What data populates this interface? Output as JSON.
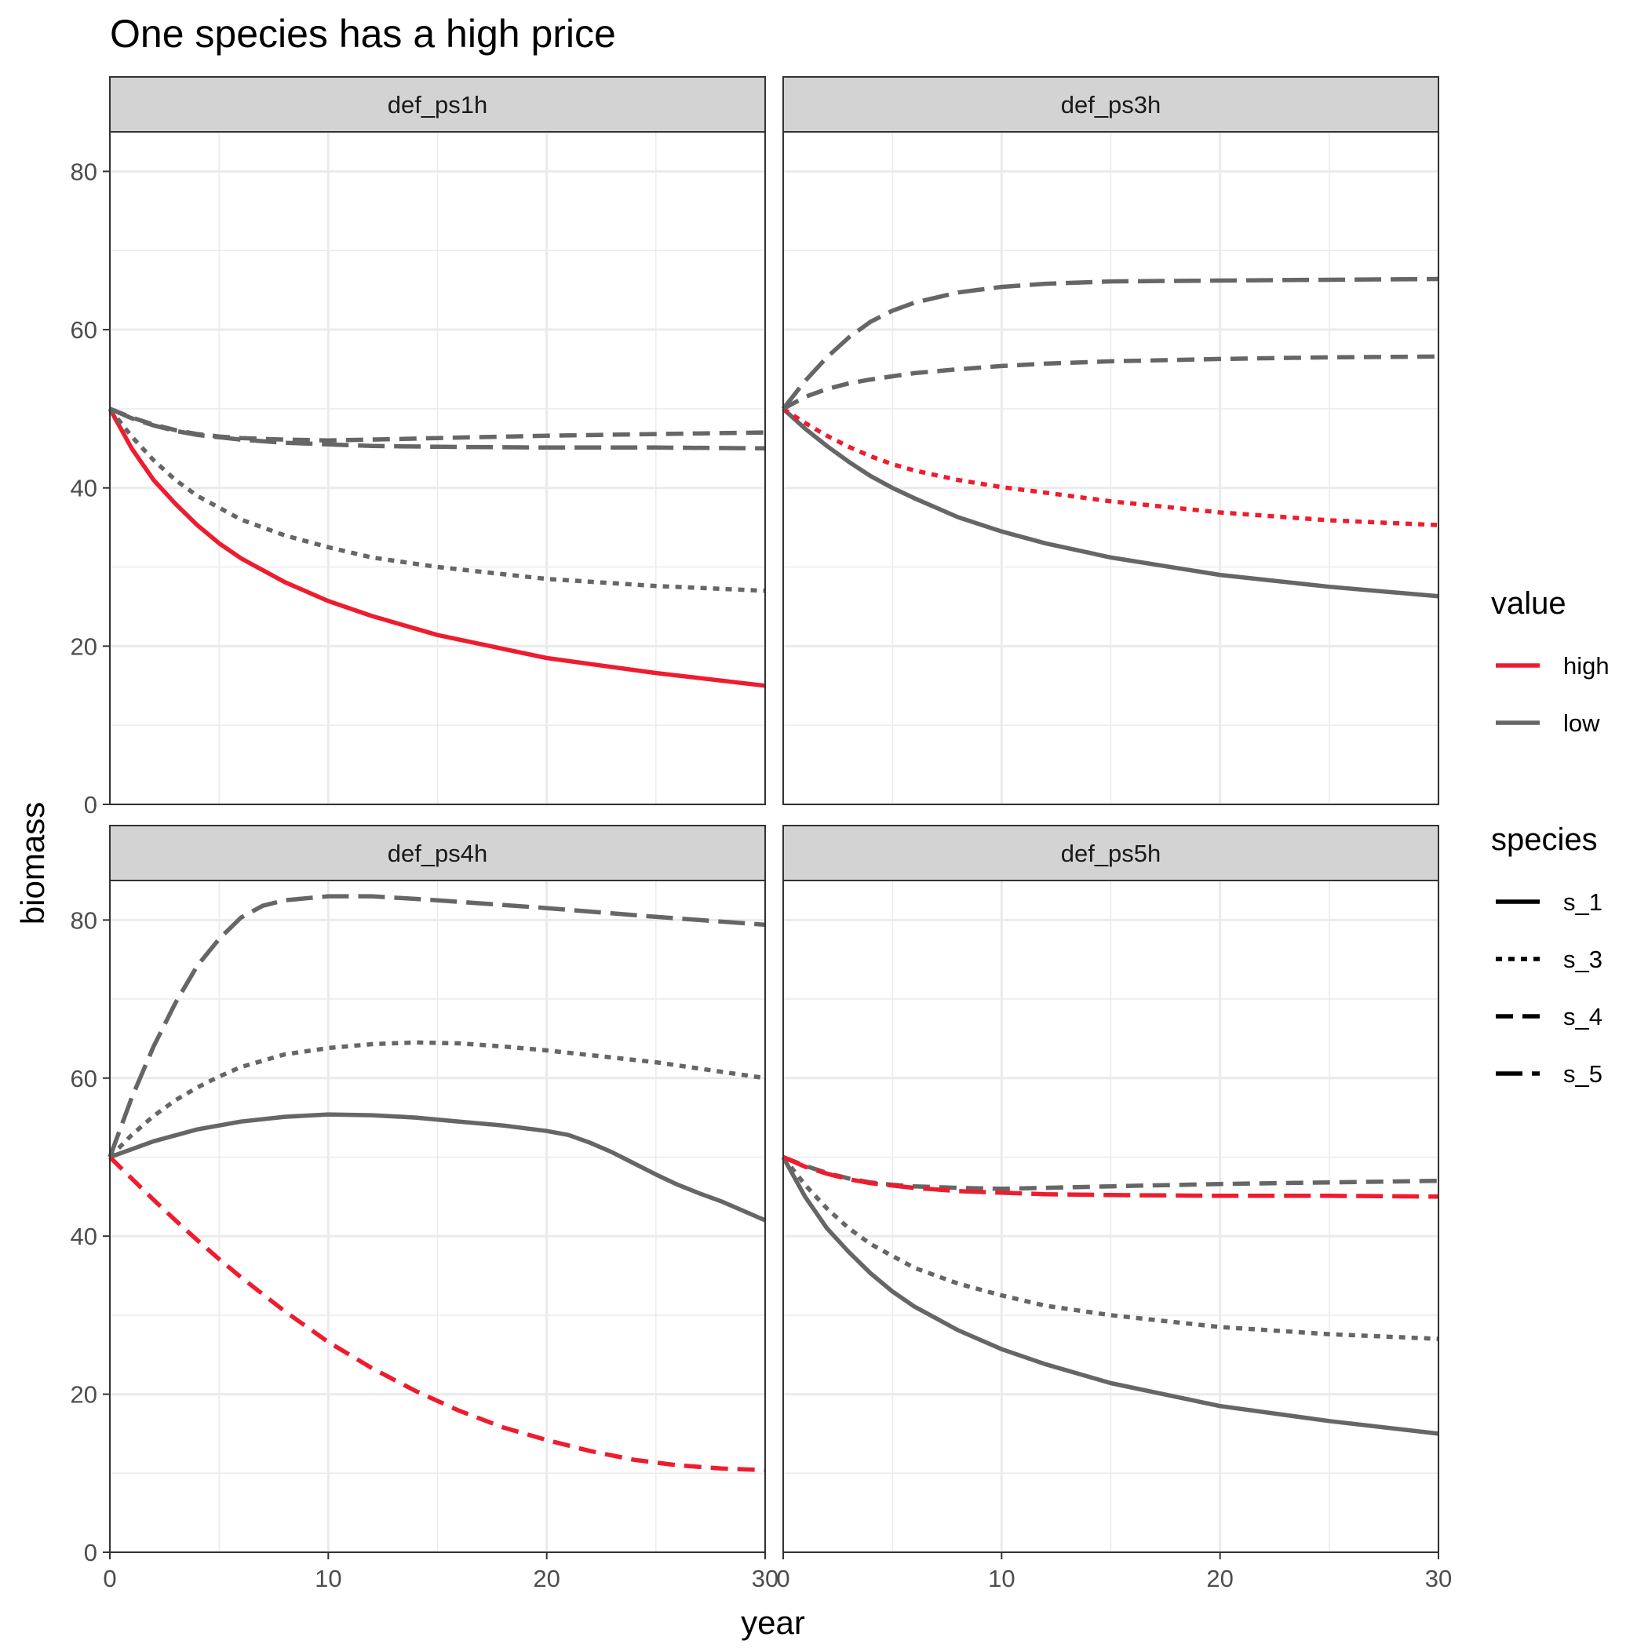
{
  "chart_data": {
    "type": "line",
    "title": "One species has a high price",
    "xlabel": "year",
    "ylabel": "biomass",
    "xlim": [
      0,
      30
    ],
    "ylim": [
      0,
      85
    ],
    "x_ticks": [
      0,
      10,
      20,
      30
    ],
    "x_tick_labels": [
      "0",
      "10",
      "20",
      "30"
    ],
    "y_ticks": [
      0,
      20,
      40,
      60,
      80
    ],
    "y_tick_labels": [
      "0",
      "20",
      "40",
      "60",
      "80"
    ],
    "grid": true,
    "legend_position": "right",
    "legends": {
      "value": {
        "title": "value",
        "items": [
          {
            "key": "high",
            "label": "high",
            "color": "#EE1C2E"
          },
          {
            "key": "low",
            "label": "low",
            "color": "#666666"
          }
        ]
      },
      "species": {
        "title": "species",
        "items": [
          {
            "key": "s_1",
            "label": "s_1",
            "dash": "solid"
          },
          {
            "key": "s_3",
            "label": "s_3",
            "dash": "dotted"
          },
          {
            "key": "s_4",
            "label": "s_4",
            "dash": "dashed"
          },
          {
            "key": "s_5",
            "label": "s_5",
            "dash": "longdash"
          }
        ]
      }
    },
    "panels": [
      {
        "name": "def_ps1h",
        "series": [
          {
            "species": "s_1",
            "value": "high",
            "x": [
              0,
              1,
              2,
              3,
              4,
              5,
              6,
              8,
              10,
              12,
              15,
              20,
              25,
              30
            ],
            "y": [
              50,
              45,
              41,
              38,
              35.3,
              33,
              31.1,
              28.1,
              25.7,
              23.8,
              21.4,
              18.5,
              16.6,
              15
            ]
          },
          {
            "species": "s_3",
            "value": "low",
            "x": [
              0,
              1,
              2,
              3,
              4,
              5,
              6,
              8,
              10,
              12,
              15,
              20,
              25,
              30
            ],
            "y": [
              50,
              46.5,
              43.5,
              41,
              39,
              37.5,
              36,
              34,
              32.5,
              31.2,
              30,
              28.5,
              27.6,
              27
            ]
          },
          {
            "species": "s_4",
            "value": "low",
            "x": [
              0,
              1,
              2,
              3,
              4,
              5,
              6,
              8,
              10,
              12,
              15,
              20,
              25,
              30
            ],
            "y": [
              50,
              48.9,
              48,
              47.3,
              46.8,
              46.5,
              46.3,
              46.1,
              46,
              46.1,
              46.3,
              46.6,
              46.8,
              47
            ]
          },
          {
            "species": "s_5",
            "value": "low",
            "x": [
              0,
              1,
              2,
              3,
              4,
              5,
              6,
              8,
              10,
              12,
              15,
              20,
              25,
              30
            ],
            "y": [
              50,
              48.8,
              47.9,
              47.2,
              46.7,
              46.4,
              46.1,
              45.7,
              45.5,
              45.3,
              45.2,
              45.1,
              45.1,
              45
            ]
          }
        ]
      },
      {
        "name": "def_ps3h",
        "series": [
          {
            "species": "s_1",
            "value": "low",
            "x": [
              0,
              1,
              2,
              3,
              4,
              5,
              6,
              8,
              10,
              12,
              15,
              20,
              25,
              30
            ],
            "y": [
              50,
              47.5,
              45.3,
              43.3,
              41.5,
              40,
              38.7,
              36.3,
              34.5,
              33,
              31.2,
              29,
              27.5,
              26.3
            ]
          },
          {
            "species": "s_3",
            "value": "high",
            "x": [
              0,
              1,
              2,
              3,
              4,
              5,
              6,
              8,
              10,
              12,
              15,
              20,
              25,
              30
            ],
            "y": [
              50,
              48.2,
              46.6,
              45.2,
              44,
              43,
              42.2,
              41,
              40.1,
              39.4,
              38.3,
              36.9,
              35.9,
              35.3
            ]
          },
          {
            "species": "s_4",
            "value": "low",
            "x": [
              0,
              1,
              2,
              3,
              4,
              5,
              6,
              8,
              10,
              12,
              15,
              20,
              25,
              30
            ],
            "y": [
              50,
              51.5,
              52.5,
              53.2,
              53.7,
              54.1,
              54.5,
              55,
              55.4,
              55.7,
              56,
              56.3,
              56.5,
              56.6
            ]
          },
          {
            "species": "s_5",
            "value": "low",
            "x": [
              0,
              1,
              2,
              3,
              4,
              5,
              6,
              8,
              10,
              12,
              15,
              20,
              25,
              30
            ],
            "y": [
              50,
              53.5,
              56.5,
              59,
              61,
              62.4,
              63.4,
              64.7,
              65.4,
              65.8,
              66.1,
              66.2,
              66.3,
              66.4
            ]
          }
        ]
      },
      {
        "name": "def_ps4h",
        "series": [
          {
            "species": "s_1",
            "value": "low",
            "x": [
              0,
              2,
              4,
              6,
              8,
              10,
              12,
              14,
              16,
              18,
              20,
              21,
              22,
              23,
              24,
              25,
              26,
              27,
              28,
              30
            ],
            "y": [
              50,
              52,
              53.5,
              54.5,
              55.1,
              55.4,
              55.3,
              55,
              54.5,
              54,
              53.3,
              52.8,
              51.8,
              50.6,
              49.2,
              47.8,
              46.5,
              45.4,
              44.4,
              42
            ]
          },
          {
            "species": "s_3",
            "value": "low",
            "x": [
              0,
              1,
              2,
              3,
              4,
              5,
              6,
              8,
              10,
              12,
              14,
              16,
              18,
              20,
              25,
              30
            ],
            "y": [
              50,
              52.8,
              55.2,
              57.2,
              58.8,
              60.2,
              61.4,
              63,
              63.8,
              64.3,
              64.5,
              64.4,
              64,
              63.5,
              62,
              60
            ]
          },
          {
            "species": "s_4",
            "value": "high",
            "x": [
              0,
              1,
              2,
              3,
              4,
              5,
              6,
              8,
              10,
              12,
              14,
              16,
              18,
              20,
              22,
              24,
              26,
              28,
              30
            ],
            "y": [
              50,
              47.3,
              44.6,
              42,
              39.5,
              37.1,
              34.8,
              30.5,
              26.6,
              23.3,
              20.4,
              17.9,
              15.8,
              14.2,
              12.8,
              11.7,
              11,
              10.6,
              10.4
            ]
          },
          {
            "species": "s_5",
            "value": "low",
            "x": [
              0,
              1,
              2,
              3,
              4,
              5,
              6,
              7,
              8,
              10,
              12,
              15,
              20,
              25,
              30
            ],
            "y": [
              50,
              57.5,
              64,
              69.5,
              74.2,
              77.6,
              80.3,
              81.8,
              82.5,
              83,
              83,
              82.5,
              81.5,
              80.4,
              79.4
            ]
          }
        ]
      },
      {
        "name": "def_ps5h",
        "series": [
          {
            "species": "s_1",
            "value": "low",
            "x": [
              0,
              1,
              2,
              3,
              4,
              5,
              6,
              8,
              10,
              12,
              15,
              20,
              25,
              30
            ],
            "y": [
              50,
              45,
              41,
              38,
              35.3,
              33,
              31.1,
              28.1,
              25.7,
              23.8,
              21.4,
              18.5,
              16.6,
              15
            ]
          },
          {
            "species": "s_3",
            "value": "low",
            "x": [
              0,
              1,
              2,
              3,
              4,
              5,
              6,
              8,
              10,
              12,
              15,
              20,
              25,
              30
            ],
            "y": [
              50,
              46.5,
              43.5,
              41,
              39,
              37.5,
              36,
              34,
              32.5,
              31.2,
              30,
              28.5,
              27.6,
              27
            ]
          },
          {
            "species": "s_4",
            "value": "low",
            "x": [
              0,
              1,
              2,
              3,
              4,
              5,
              6,
              8,
              10,
              12,
              15,
              20,
              25,
              30
            ],
            "y": [
              50,
              48.9,
              48,
              47.3,
              46.8,
              46.5,
              46.3,
              46.1,
              46,
              46.1,
              46.3,
              46.6,
              46.8,
              47
            ]
          },
          {
            "species": "s_5",
            "value": "high",
            "x": [
              0,
              1,
              2,
              3,
              4,
              5,
              6,
              8,
              10,
              12,
              15,
              20,
              25,
              30
            ],
            "y": [
              50,
              48.8,
              47.9,
              47.2,
              46.7,
              46.4,
              46.1,
              45.7,
              45.5,
              45.3,
              45.2,
              45.1,
              45.1,
              45
            ]
          }
        ]
      }
    ]
  }
}
